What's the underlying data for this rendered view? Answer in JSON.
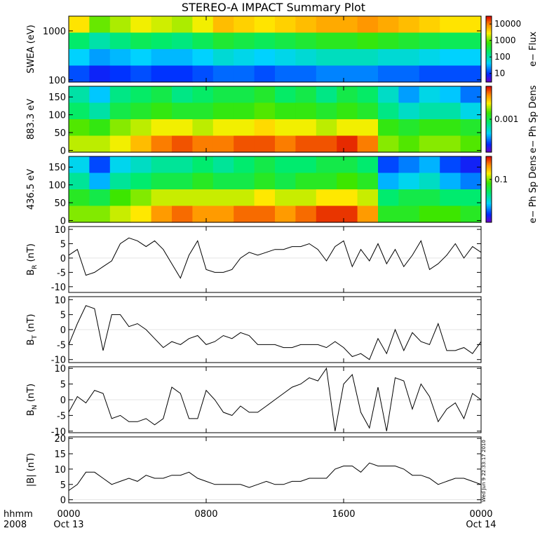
{
  "title": "STEREO-A IMPACT Summary Plot",
  "x_axis": {
    "row1_labels": [
      "hhmm",
      "0000",
      "0800",
      "1600",
      "0000"
    ],
    "row2_labels": [
      "2008",
      "Oct 13",
      "Oct 14"
    ]
  },
  "timestamp": "Wed Jun 9 22:33:17 2010",
  "chart_data": [
    {
      "type": "heatmap",
      "name": "swea",
      "ylabel": "SWEA (eV)",
      "yscale": "log",
      "ylim": [
        90,
        2000
      ],
      "yticks": [
        {
          "v": 1000,
          "label": "1000"
        },
        {
          "v": 100,
          "label": "100"
        }
      ],
      "colorbar": {
        "label": "e− Flux",
        "scale": "log",
        "range": [
          3,
          30000
        ],
        "ticks": [
          {
            "v": 10000,
            "label": "10000"
          },
          {
            "v": 1000,
            "label": "1000"
          },
          {
            "v": 100,
            "label": "100"
          },
          {
            "v": 10,
            "label": "10"
          }
        ]
      },
      "grid_values": [
        [
          3.5,
          3.0,
          3.2,
          3.4,
          3.3,
          3.2,
          3.4,
          3.7,
          3.6,
          3.5,
          3.6,
          3.7,
          3.8,
          3.8,
          3.9,
          3.8,
          3.7,
          3.6,
          3.5,
          3.5
        ],
        [
          2.3,
          2.0,
          2.2,
          2.4,
          2.3,
          2.2,
          2.4,
          2.6,
          2.5,
          2.4,
          2.5,
          2.6,
          2.7,
          2.7,
          2.8,
          2.7,
          2.6,
          2.5,
          2.4,
          2.4
        ],
        [
          1.6,
          1.4,
          1.5,
          1.6,
          1.5,
          1.5,
          1.6,
          1.8,
          1.7,
          1.6,
          1.7,
          1.8,
          1.9,
          1.9,
          1.9,
          1.8,
          1.8,
          1.7,
          1.6,
          1.6
        ],
        [
          1.1,
          0.9,
          1.0,
          1.1,
          1.0,
          1.0,
          1.1,
          1.2,
          1.2,
          1.1,
          1.2,
          1.2,
          1.3,
          1.3,
          1.3,
          1.2,
          1.2,
          1.1,
          1.1,
          1.1
        ]
      ]
    },
    {
      "type": "heatmap",
      "name": "pad883",
      "ylabel": "883.3 eV",
      "ylim": [
        -5,
        180
      ],
      "yticks": [
        {
          "v": 150,
          "label": "150"
        },
        {
          "v": 100,
          "label": "100"
        },
        {
          "v": 50,
          "label": "50"
        },
        {
          "v": 0,
          "label": "0"
        }
      ],
      "colorbar": {
        "label": "e− Ph Sp Dens",
        "scale": "log",
        "range": [
          5e-05,
          0.02
        ],
        "ticks": [
          {
            "v": 0.001,
            "label": "0.001"
          }
        ]
      },
      "grid_values": [
        [
          -3.3,
          -3.6,
          -3.2,
          -3.1,
          -3.0,
          -3.2,
          -3.1,
          -3.0,
          -3.0,
          -2.9,
          -3.1,
          -3.0,
          -3.2,
          -3.0,
          -3.1,
          -3.4,
          -3.7,
          -3.5,
          -3.6,
          -3.8
        ],
        [
          -3.1,
          -3.3,
          -3.0,
          -2.9,
          -2.8,
          -2.9,
          -2.9,
          -2.8,
          -2.8,
          -2.7,
          -2.8,
          -2.8,
          -2.9,
          -2.8,
          -2.9,
          -3.2,
          -3.4,
          -3.3,
          -3.3,
          -3.5
        ],
        [
          -2.7,
          -2.8,
          -2.6,
          -2.5,
          -2.4,
          -2.4,
          -2.5,
          -2.4,
          -2.4,
          -2.3,
          -2.4,
          -2.4,
          -2.5,
          -2.4,
          -2.4,
          -2.8,
          -2.9,
          -2.8,
          -2.8,
          -2.9
        ],
        [
          -2.5,
          -2.5,
          -2.4,
          -2.2,
          -2.0,
          -1.9,
          -2.0,
          -2.0,
          -1.9,
          -1.9,
          -2.0,
          -1.9,
          -1.9,
          -1.8,
          -2.0,
          -2.6,
          -2.7,
          -2.6,
          -2.6,
          -2.7
        ]
      ]
    },
    {
      "type": "heatmap",
      "name": "pad436",
      "ylabel": "436.5 eV",
      "ylim": [
        -5,
        180
      ],
      "yticks": [
        {
          "v": 150,
          "label": "150"
        },
        {
          "v": 100,
          "label": "100"
        },
        {
          "v": 50,
          "label": "50"
        },
        {
          "v": 0,
          "label": "0"
        }
      ],
      "colorbar": {
        "label": "e− Ph Sp Dens",
        "scale": "log",
        "range": [
          0.005,
          0.5
        ],
        "ticks": [
          {
            "v": 0.1,
            "label": "0.1"
          }
        ]
      },
      "grid_values": [
        [
          -1.7,
          -2.0,
          -1.7,
          -1.6,
          -1.5,
          -1.5,
          -1.4,
          -1.5,
          -1.4,
          -1.3,
          -1.4,
          -1.4,
          -1.3,
          -1.3,
          -1.4,
          -2.0,
          -1.9,
          -1.8,
          -2.0,
          -2.1
        ],
        [
          -1.5,
          -1.8,
          -1.5,
          -1.4,
          -1.3,
          -1.3,
          -1.2,
          -1.3,
          -1.3,
          -1.2,
          -1.3,
          -1.2,
          -1.2,
          -1.1,
          -1.2,
          -1.8,
          -1.7,
          -1.6,
          -1.8,
          -1.9
        ],
        [
          -1.2,
          -1.3,
          -1.1,
          -1.0,
          -0.9,
          -0.9,
          -0.9,
          -0.9,
          -0.9,
          -0.8,
          -0.9,
          -0.9,
          -0.8,
          -0.8,
          -0.9,
          -1.4,
          -1.3,
          -1.3,
          -1.4,
          -1.4
        ],
        [
          -1.0,
          -1.0,
          -0.9,
          -0.8,
          -0.6,
          -0.5,
          -0.6,
          -0.6,
          -0.5,
          -0.5,
          -0.6,
          -0.5,
          -0.4,
          -0.4,
          -0.6,
          -1.2,
          -1.2,
          -1.1,
          -1.1,
          -1.2
        ]
      ]
    },
    {
      "type": "line",
      "name": "BR",
      "ylabel": "B_R (nT)",
      "ylim": [
        -12,
        11
      ],
      "yticks": [
        {
          "v": 10,
          "label": "10"
        },
        {
          "v": 5,
          "label": "5"
        },
        {
          "v": 0,
          "label": "0"
        },
        {
          "v": -5,
          "label": "-5"
        },
        {
          "v": -10,
          "label": "-10"
        }
      ],
      "x_hours": [
        0,
        0.5,
        1,
        1.5,
        2,
        2.5,
        3,
        3.5,
        4,
        4.5,
        5,
        5.5,
        6,
        6.5,
        7,
        7.5,
        8,
        8.5,
        9,
        9.5,
        10,
        10.5,
        11,
        11.5,
        12,
        12.5,
        13,
        13.5,
        14,
        14.5,
        15,
        15.5,
        16,
        16.5,
        17,
        17.5,
        18,
        18.5,
        19,
        19.5,
        20,
        20.5,
        21,
        21.5,
        22,
        22.5,
        23,
        23.5,
        24
      ],
      "values": [
        1,
        3,
        -6,
        -5,
        -3,
        -1,
        5,
        7,
        6,
        4,
        6,
        3,
        -2,
        -7,
        1,
        6,
        -4,
        -5,
        -5,
        -4,
        0,
        2,
        1,
        2,
        3,
        3,
        4,
        4,
        5,
        3,
        -1,
        4,
        6,
        -3,
        3,
        -1,
        5,
        -2,
        3,
        -3,
        1,
        6,
        -4,
        -2,
        1,
        5,
        0,
        4,
        2
      ]
    },
    {
      "type": "line",
      "name": "BT",
      "ylabel": "B_T (nT)",
      "ylim": [
        -11,
        11
      ],
      "yticks": [
        {
          "v": 10,
          "label": "10"
        },
        {
          "v": 5,
          "label": "5"
        },
        {
          "v": 0,
          "label": "0"
        },
        {
          "v": -5,
          "label": "-5"
        },
        {
          "v": -10,
          "label": "-10"
        }
      ],
      "x_hours": [
        0,
        0.5,
        1,
        1.5,
        2,
        2.5,
        3,
        3.5,
        4,
        4.5,
        5,
        5.5,
        6,
        6.5,
        7,
        7.5,
        8,
        8.5,
        9,
        9.5,
        10,
        10.5,
        11,
        11.5,
        12,
        12.5,
        13,
        13.5,
        14,
        14.5,
        15,
        15.5,
        16,
        16.5,
        17,
        17.5,
        18,
        18.5,
        19,
        19.5,
        20,
        20.5,
        21,
        21.5,
        22,
        22.5,
        23,
        23.5,
        24
      ],
      "values": [
        -5,
        2,
        8,
        7,
        -7,
        5,
        5,
        1,
        2,
        0,
        -3,
        -6,
        -4,
        -5,
        -3,
        -2,
        -5,
        -4,
        -2,
        -3,
        -1,
        -2,
        -5,
        -5,
        -5,
        -6,
        -6,
        -5,
        -5,
        -5,
        -6,
        -4,
        -6,
        -9,
        -8,
        -10,
        -3,
        -8,
        0,
        -7,
        -1,
        -4,
        -5,
        2,
        -7,
        -7,
        -6,
        -8,
        -4
      ]
    },
    {
      "type": "line",
      "name": "BN",
      "ylabel": "B_N (nT)",
      "ylim": [
        -10.5,
        10.5
      ],
      "yticks": [
        {
          "v": 10,
          "label": "10"
        },
        {
          "v": 5,
          "label": "5"
        },
        {
          "v": 0,
          "label": "0"
        },
        {
          "v": -5,
          "label": "-5"
        },
        {
          "v": -10,
          "label": "-10"
        }
      ],
      "x_hours": [
        0,
        0.5,
        1,
        1.5,
        2,
        2.5,
        3,
        3.5,
        4,
        4.5,
        5,
        5.5,
        6,
        6.5,
        7,
        7.5,
        8,
        8.5,
        9,
        9.5,
        10,
        10.5,
        11,
        11.5,
        12,
        12.5,
        13,
        13.5,
        14,
        14.5,
        15,
        15.5,
        16,
        16.5,
        17,
        17.5,
        18,
        18.5,
        19,
        19.5,
        20,
        20.5,
        21,
        21.5,
        22,
        22.5,
        23,
        23.5,
        24
      ],
      "values": [
        -4,
        1,
        -1,
        3,
        2,
        -6,
        -5,
        -7,
        -7,
        -6,
        -8,
        -6,
        4,
        2,
        -6,
        -6,
        3,
        0,
        -4,
        -5,
        -2,
        -4,
        -4,
        -2,
        0,
        2,
        4,
        5,
        7,
        6,
        10,
        -10,
        5,
        8,
        -4,
        -9,
        4,
        -10,
        7,
        6,
        -3,
        5,
        1,
        -7,
        -3,
        -1,
        -6,
        2,
        0
      ]
    },
    {
      "type": "line",
      "name": "B",
      "ylabel": "|B| (nT)",
      "ylim": [
        -1,
        20.5
      ],
      "yticks": [
        {
          "v": 20,
          "label": "20"
        },
        {
          "v": 15,
          "label": "15"
        },
        {
          "v": 10,
          "label": "10"
        },
        {
          "v": 5,
          "label": "5"
        },
        {
          "v": 0,
          "label": "0"
        }
      ],
      "x_hours": [
        0,
        0.5,
        1,
        1.5,
        2,
        2.5,
        3,
        3.5,
        4,
        4.5,
        5,
        5.5,
        6,
        6.5,
        7,
        7.5,
        8,
        8.5,
        9,
        9.5,
        10,
        10.5,
        11,
        11.5,
        12,
        12.5,
        13,
        13.5,
        14,
        14.5,
        15,
        15.5,
        16,
        16.5,
        17,
        17.5,
        18,
        18.5,
        19,
        19.5,
        20,
        20.5,
        21,
        21.5,
        22,
        22.5,
        23,
        23.5,
        24
      ],
      "values": [
        3,
        5,
        9,
        9,
        7,
        5,
        6,
        7,
        6,
        8,
        7,
        7,
        8,
        8,
        9,
        7,
        6,
        5,
        5,
        5,
        5,
        4,
        5,
        6,
        5,
        5,
        6,
        6,
        7,
        7,
        7,
        10,
        11,
        11,
        9,
        12,
        11,
        11,
        11,
        10,
        8,
        8,
        7,
        5,
        6,
        7,
        7,
        6,
        5
      ]
    }
  ]
}
